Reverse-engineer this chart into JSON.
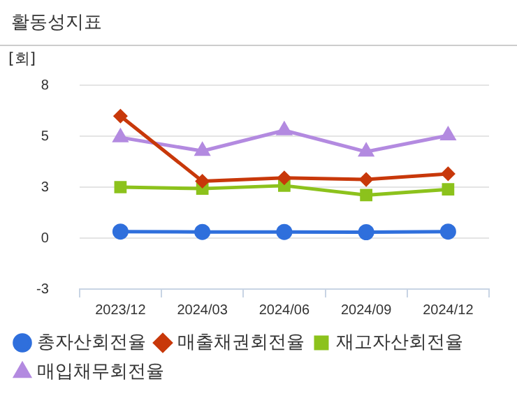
{
  "chart_data": {
    "type": "line",
    "title": "활동성지표",
    "ylabel": "[회]",
    "categories": [
      "2023/12",
      "2024/03",
      "2024/06",
      "2024/09",
      "2024/12"
    ],
    "series": [
      {
        "name": "총자산회전율",
        "color": "#2f6fdc",
        "marker": "circle",
        "values": [
          0.1,
          0.08,
          0.08,
          0.07,
          0.1
        ]
      },
      {
        "name": "매출채권회전율",
        "color": "#c8380a",
        "marker": "diamond",
        "values": [
          6.33,
          2.82,
          3.0,
          2.91,
          3.22
        ]
      },
      {
        "name": "재고자산회전율",
        "color": "#8cc21c",
        "marker": "square",
        "values": [
          2.5,
          2.42,
          2.58,
          2.07,
          2.38
        ]
      },
      {
        "name": "매입채무회전율",
        "color": "#b38ae0",
        "marker": "triangle",
        "values": [
          5.18,
          4.45,
          5.56,
          4.41,
          5.29
        ]
      }
    ],
    "ylim": [
      -3,
      8
    ],
    "yticks": [
      -3,
      {
        "value": -0.25,
        "label": "0"
      },
      {
        "value": 2.5,
        "label": "3"
      },
      {
        "value": 5.25,
        "label": "5"
      },
      8
    ],
    "grid": "y",
    "legend": "bottom"
  }
}
